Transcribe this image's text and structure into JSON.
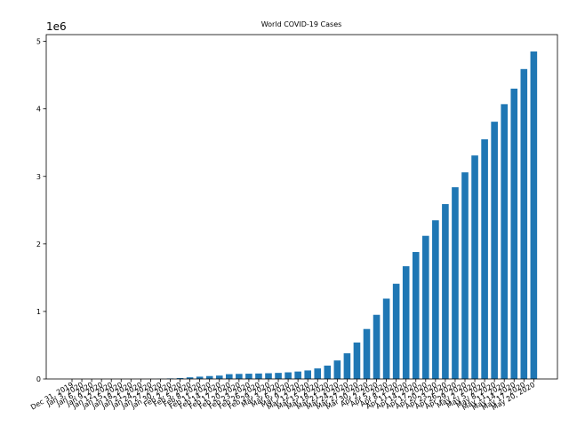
{
  "chart_data": {
    "type": "bar",
    "title": "World COVID-19 Cases",
    "xlabel": "",
    "ylabel": "",
    "y_offset_label": "1e6",
    "ylim": [
      0,
      5.1
    ],
    "y_ticks": [
      0,
      1,
      2,
      3,
      4,
      5
    ],
    "grid": false,
    "bar_color": "#1f77b4",
    "categories": [
      "Dec 31, 2019",
      "Jan 3, 2020",
      "Jan 6, 2020",
      "Jan 9, 2020",
      "Jan 12, 2020",
      "Jan 15, 2020",
      "Jan 18, 2020",
      "Jan 21, 2020",
      "Jan 24, 2020",
      "Jan 27, 2020",
      "Jan 30, 2020",
      "Feb 2, 2020",
      "Feb 5, 2020",
      "Feb 8, 2020",
      "Feb 11, 2020",
      "Feb 14, 2020",
      "Feb 17, 2020",
      "Feb 20, 2020",
      "Feb 23, 2020",
      "Feb 26, 2020",
      "Feb 29, 2020",
      "Mar 3, 2020",
      "Mar 6, 2020",
      "Mar 9, 2020",
      "Mar 12, 2020",
      "Mar 15, 2020",
      "Mar 18, 2020",
      "Mar 21, 2020",
      "Mar 24, 2020",
      "Mar 27, 2020",
      "Mar 30, 2020",
      "Apr 2, 2020",
      "Apr 5, 2020",
      "Apr 8, 2020",
      "Apr 11, 2020",
      "Apr 14, 2020",
      "Apr 17, 2020",
      "Apr 20, 2020",
      "Apr 23, 2020",
      "Apr 26, 2020",
      "Apr 29, 2020",
      "May 2, 2020",
      "May 5, 2020",
      "May 8, 2020",
      "May 11, 2020",
      "May 14, 2020",
      "May 17, 2020",
      "May 20, 2020"
    ],
    "values": [
      2.7e-05,
      4.4e-05,
      5.9e-05,
      5.9e-05,
      5.9e-05,
      5.9e-05,
      6.2e-05,
      0.00031,
      0.00089,
      0.0028,
      0.0078,
      0.014,
      0.024,
      0.034,
      0.043,
      0.05,
      0.071,
      0.075,
      0.078,
      0.081,
      0.085,
      0.09,
      0.098,
      0.11,
      0.126,
      0.156,
      0.198,
      0.274,
      0.38,
      0.54,
      0.74,
      0.95,
      1.19,
      1.41,
      1.67,
      1.88,
      2.12,
      2.35,
      2.59,
      2.84,
      3.06,
      3.31,
      3.55,
      3.81,
      4.07,
      4.3,
      4.59,
      4.85
    ]
  }
}
